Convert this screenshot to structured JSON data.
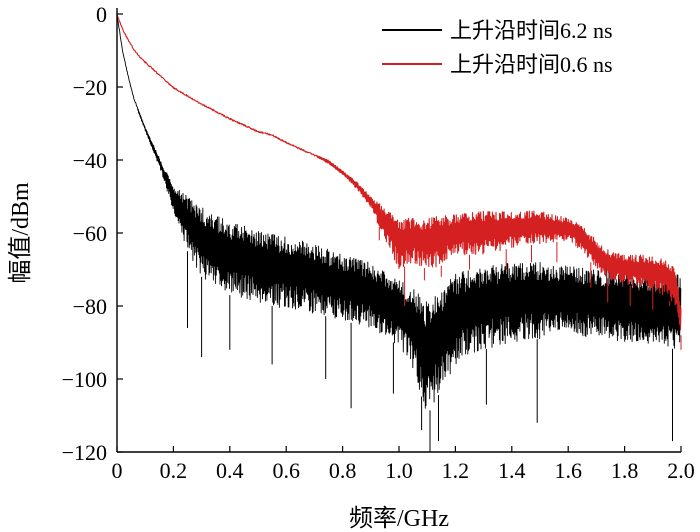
{
  "chart_data": {
    "type": "line",
    "title": "",
    "xlabel": "频率/GHz",
    "ylabel": "幅值/dBm",
    "xlim": [
      0,
      2.0
    ],
    "ylim": [
      -120,
      0
    ],
    "xticks": [
      0,
      0.2,
      0.4,
      0.6,
      0.8,
      1.0,
      1.2,
      1.4,
      1.6,
      1.8,
      2.0
    ],
    "xtick_labels": [
      "0",
      "0.2",
      "0.4",
      "0.6",
      "0.8",
      "1.0",
      "1.2",
      "1.4",
      "1.6",
      "1.8",
      "2.0"
    ],
    "yticks": [
      0,
      -20,
      -40,
      -60,
      -80,
      -100,
      -120
    ],
    "ytick_labels": [
      "0",
      "−20",
      "−40",
      "−60",
      "−80",
      "−100",
      "−120"
    ],
    "grid": false,
    "legend_position": "top-right",
    "series": [
      {
        "name": "上升沿时间6.2 ns",
        "color": "#000000",
        "x": [
          0,
          0.01,
          0.02,
          0.04,
          0.06,
          0.08,
          0.1,
          0.13,
          0.16,
          0.2,
          0.25,
          0.3,
          0.4,
          0.5,
          0.6,
          0.7,
          0.8,
          0.9,
          1.0,
          1.05,
          1.1,
          1.15,
          1.2,
          1.3,
          1.4,
          1.5,
          1.6,
          1.7,
          1.8,
          1.9,
          2.0
        ],
        "upper": [
          0,
          -5,
          -10,
          -17,
          -23,
          -27,
          -31,
          -36,
          -41,
          -47,
          -50,
          -53,
          -57,
          -59,
          -61,
          -63,
          -66,
          -68,
          -73,
          -75,
          -79,
          -76,
          -71,
          -69,
          -68,
          -68,
          -69,
          -70,
          -70,
          -72,
          -71
        ],
        "lower": [
          0,
          -5,
          -10,
          -17,
          -23,
          -28,
          -32,
          -38,
          -44,
          -54,
          -65,
          -72,
          -77,
          -79,
          -81,
          -82,
          -84,
          -86,
          -91,
          -97,
          -110,
          -103,
          -96,
          -92,
          -90,
          -89,
          -88,
          -89,
          -90,
          -91,
          -92
        ],
        "minima": [
          [
            0.25,
            -86
          ],
          [
            0.3,
            -94
          ],
          [
            0.4,
            -92
          ],
          [
            0.55,
            -96
          ],
          [
            0.74,
            -100
          ],
          [
            0.83,
            -108
          ],
          [
            0.98,
            -104
          ],
          [
            1.08,
            -114
          ],
          [
            1.11,
            -120
          ],
          [
            1.14,
            -117
          ],
          [
            1.31,
            -107
          ],
          [
            1.49,
            -112
          ],
          [
            1.97,
            -117
          ]
        ]
      },
      {
        "name": "上升沿时间0.6 ns",
        "color": "#d42020",
        "x": [
          0,
          0.01,
          0.02,
          0.04,
          0.06,
          0.08,
          0.1,
          0.15,
          0.2,
          0.3,
          0.4,
          0.5,
          0.55,
          0.6,
          0.7,
          0.75,
          0.8,
          0.85,
          0.9,
          0.95,
          1.0,
          1.05,
          1.1,
          1.15,
          1.2,
          1.3,
          1.4,
          1.5,
          1.6,
          1.65,
          1.7,
          1.75,
          1.8,
          1.85,
          1.9,
          1.95,
          1.98,
          2.0
        ],
        "upper": [
          0,
          -2,
          -4,
          -7,
          -9.5,
          -11.5,
          -13,
          -16.5,
          -20,
          -24.5,
          -28.5,
          -32,
          -33,
          -35,
          -38.5,
          -40,
          -43,
          -46,
          -50,
          -53,
          -56,
          -56,
          -56,
          -55,
          -55,
          -54,
          -54,
          -54,
          -56,
          -58,
          -62,
          -65,
          -66,
          -66,
          -66,
          -67,
          -69,
          -80
        ],
        "lower": [
          0,
          -2,
          -4,
          -7,
          -9.5,
          -11.5,
          -13,
          -16.5,
          -20,
          -24.5,
          -28.5,
          -32,
          -33,
          -35,
          -39,
          -41,
          -44,
          -48,
          -53,
          -62,
          -70,
          -68,
          -70,
          -69,
          -66,
          -66,
          -64,
          -63,
          -62,
          -65,
          -70,
          -73,
          -74,
          -75,
          -76,
          -78,
          -80,
          -88
        ],
        "minima": [
          [
            0.93,
            -62
          ],
          [
            1.02,
            -80
          ],
          [
            1.09,
            -73
          ],
          [
            1.15,
            -72
          ],
          [
            1.25,
            -70
          ],
          [
            1.38,
            -70
          ],
          [
            1.47,
            -68
          ],
          [
            1.56,
            -68
          ],
          [
            1.68,
            -75
          ],
          [
            1.74,
            -79
          ],
          [
            1.82,
            -80
          ],
          [
            1.9,
            -81
          ],
          [
            1.96,
            -80
          ],
          [
            2.0,
            -92
          ]
        ]
      }
    ]
  }
}
